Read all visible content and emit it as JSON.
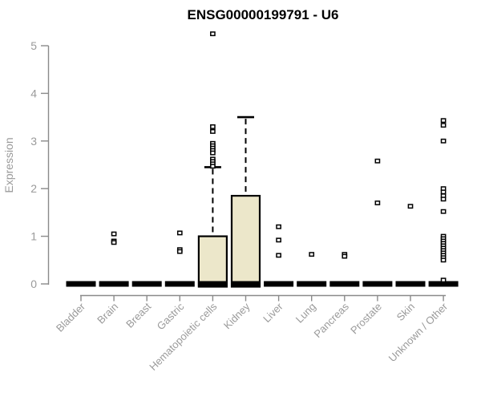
{
  "title": "ENSG00000199791 - U6",
  "chart_data": {
    "type": "boxplot",
    "title": "ENSG00000199791 - U6",
    "xlabel": "",
    "ylabel": "Expression",
    "ylim": [
      0,
      5
    ],
    "yticks": [
      0,
      1,
      2,
      3,
      4,
      5
    ],
    "grid": false,
    "legend": "none",
    "categories": [
      "Bladder",
      "Brain",
      "Breast",
      "Gastric",
      "Hematopoietic cells",
      "Kidney",
      "Liver",
      "Lung",
      "Pancreas",
      "Prostate",
      "Skin",
      "Unknown / Other"
    ],
    "boxes": [
      {
        "category": "Bladder",
        "median": 0,
        "q1": 0,
        "q3": 0,
        "whisker_low": 0,
        "whisker_high": 0,
        "outliers": []
      },
      {
        "category": "Brain",
        "median": 0,
        "q1": 0,
        "q3": 0,
        "whisker_low": 0,
        "whisker_high": 0,
        "outliers": [
          1.05,
          0.9,
          0.87
        ]
      },
      {
        "category": "Breast",
        "median": 0,
        "q1": 0,
        "q3": 0,
        "whisker_low": 0,
        "whisker_high": 0,
        "outliers": []
      },
      {
        "category": "Gastric",
        "median": 0,
        "q1": 0,
        "q3": 0,
        "whisker_low": 0,
        "whisker_high": 0,
        "outliers": [
          1.07,
          0.72,
          0.68
        ]
      },
      {
        "category": "Hematopoietic cells",
        "median": 0,
        "q1": 0,
        "q3": 1.0,
        "whisker_low": 0,
        "whisker_high": 2.45,
        "outliers": [
          5.25,
          3.3,
          3.2,
          2.95,
          2.9,
          2.85,
          2.8,
          2.75,
          2.62,
          2.57,
          2.52,
          2.47
        ]
      },
      {
        "category": "Kidney",
        "median": 0,
        "q1": 0,
        "q3": 1.85,
        "whisker_low": 0,
        "whisker_high": 3.5,
        "outliers": []
      },
      {
        "category": "Liver",
        "median": 0,
        "q1": 0,
        "q3": 0,
        "whisker_low": 0,
        "whisker_high": 0,
        "outliers": [
          1.2,
          0.92,
          0.6
        ]
      },
      {
        "category": "Lung",
        "median": 0,
        "q1": 0,
        "q3": 0,
        "whisker_low": 0,
        "whisker_high": 0,
        "outliers": [
          0.62
        ]
      },
      {
        "category": "Pancreas",
        "median": 0,
        "q1": 0,
        "q3": 0,
        "whisker_low": 0,
        "whisker_high": 0,
        "outliers": [
          0.62,
          0.58
        ]
      },
      {
        "category": "Prostate",
        "median": 0,
        "q1": 0,
        "q3": 0,
        "whisker_low": 0,
        "whisker_high": 0,
        "outliers": [
          2.58,
          1.7
        ]
      },
      {
        "category": "Skin",
        "median": 0,
        "q1": 0,
        "q3": 0,
        "whisker_low": 0,
        "whisker_high": 0,
        "outliers": [
          1.63
        ]
      },
      {
        "category": "Unknown / Other",
        "median": 0,
        "q1": 0,
        "q3": 0,
        "whisker_low": 0,
        "whisker_high": 0,
        "outliers": [
          3.43,
          3.33,
          3.0,
          2.0,
          1.93,
          1.85,
          1.78,
          1.52,
          1.0,
          0.95,
          0.9,
          0.85,
          0.8,
          0.75,
          0.7,
          0.65,
          0.6,
          0.55,
          0.5,
          0.08
        ]
      }
    ],
    "colors": {
      "box_fill": "#ece7ca",
      "box_border": "#000000",
      "median": "#000000",
      "whisker": "#000000",
      "outlier_stroke": "#000000",
      "outlier_fill": "#ffffff",
      "axis_line": "#8a8a8a",
      "tick_label": "#9a9a9a",
      "title": "#000000",
      "background": "#ffffff"
    }
  }
}
